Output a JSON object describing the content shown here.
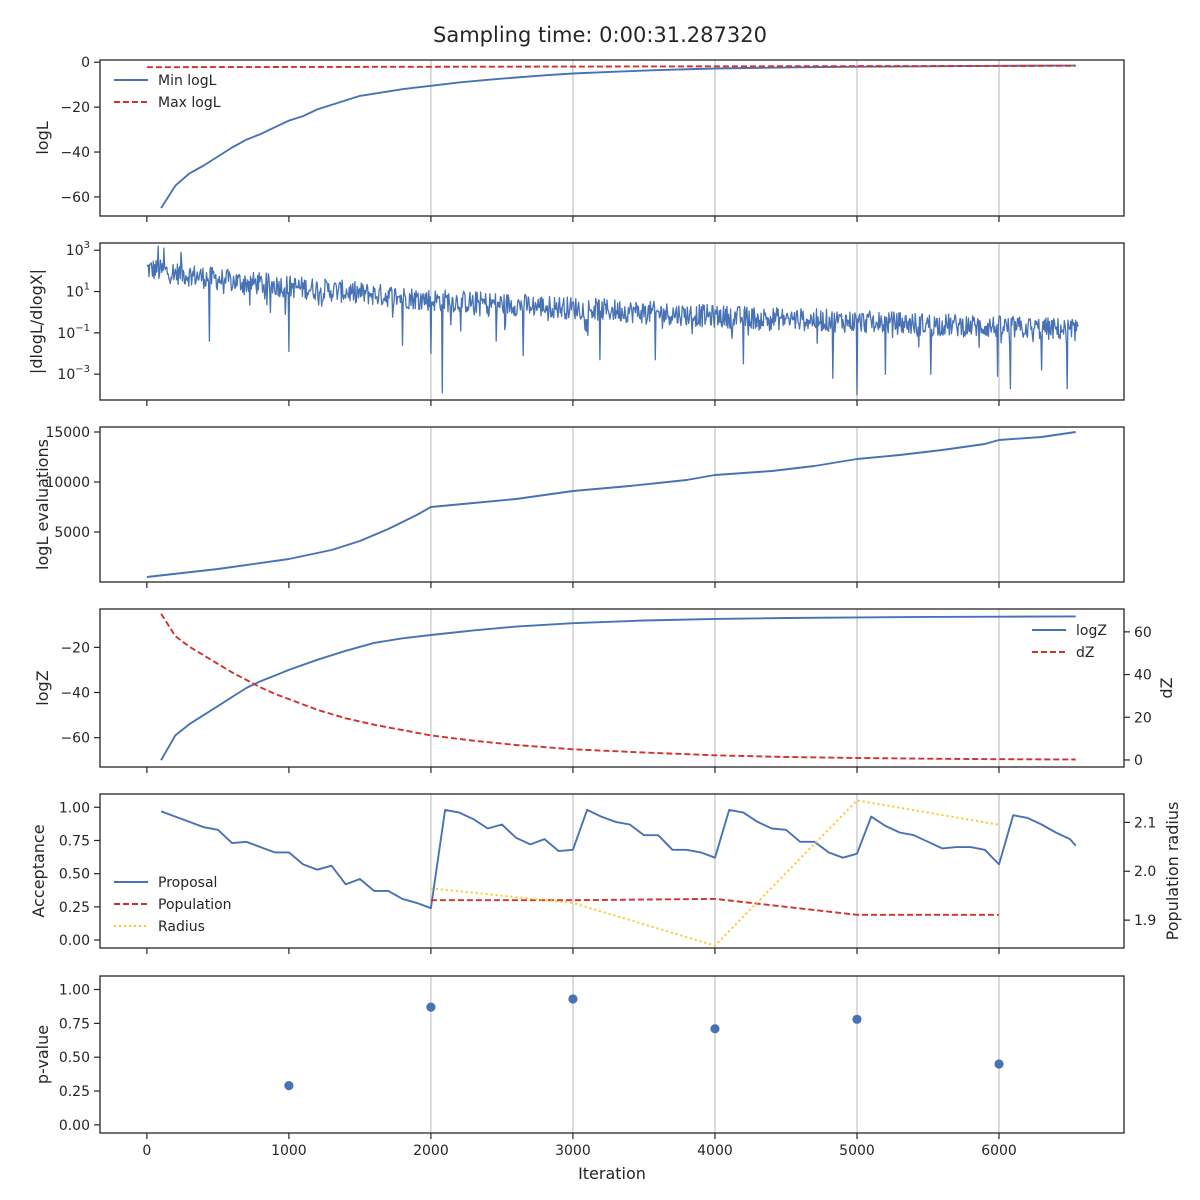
{
  "title": "Sampling time: 0:00:31.287320",
  "colors": {
    "blue": "#4872b6",
    "red": "#d0322d",
    "gold": "#ffc51c",
    "grid": "#cccccc",
    "axis": "#262626"
  },
  "shared_x": {
    "label": "Iteration",
    "ticks": [
      0,
      1000,
      2000,
      3000,
      4000,
      5000,
      6000
    ],
    "tick_labels": [
      "0",
      "1000",
      "2000",
      "3000",
      "4000",
      "5000",
      "6000"
    ],
    "xlim": [
      -330,
      6880
    ],
    "grid_x": [
      2000,
      3000,
      4000,
      5000,
      6000
    ]
  },
  "chart_data": [
    {
      "type": "line",
      "ylabel": "logL",
      "ylim": [
        -68.5,
        1
      ],
      "yticks": [
        0,
        -20,
        -40,
        -60
      ],
      "ytick_labels": [
        "0",
        "−20",
        "−40",
        "−60"
      ],
      "legend_position": "upper-left",
      "series": [
        {
          "name": "Min logL",
          "color": "blue",
          "dash": "solid",
          "x": [
            100,
            200,
            300,
            400,
            500,
            600,
            700,
            800,
            900,
            1000,
            1100,
            1200,
            1300,
            1400,
            1500,
            1600,
            1700,
            1800,
            1900,
            2000,
            2200,
            2400,
            2600,
            2800,
            3000,
            3300,
            3600,
            4000,
            4500,
            5000,
            5500,
            6000,
            6540
          ],
          "y": [
            -65,
            -55,
            -49.5,
            -46,
            -42,
            -38,
            -34.5,
            -32,
            -29,
            -26,
            -24,
            -21,
            -19,
            -17,
            -15,
            -14,
            -13,
            -12,
            -11.2,
            -10.5,
            -9,
            -7.8,
            -6.8,
            -5.8,
            -5,
            -4.2,
            -3.5,
            -2.8,
            -2.3,
            -2,
            -1.8,
            -1.6,
            -1.5
          ]
        },
        {
          "name": "Max logL",
          "color": "red",
          "dash": "dashed",
          "x": [
            0,
            6540
          ],
          "y": [
            -2.2,
            -1.6
          ]
        }
      ]
    },
    {
      "type": "line",
      "ylabel": "|dlogL/dlogX|",
      "yscale": "log",
      "ylim_log10": [
        -4.25,
        3.35
      ],
      "yticks_log10": [
        3,
        1,
        -1,
        -3
      ],
      "ytick_labels": [
        "10^3",
        "10^1",
        "10^-1",
        "10^-3"
      ],
      "series": [
        {
          "name": "",
          "color": "blue",
          "dash": "solid",
          "kind": "noisy-decay",
          "x_range": [
            0,
            6560
          ],
          "trend_log10": [
            [
              0,
              2.1
            ],
            [
              600,
              1.5
            ],
            [
              2000,
              0.6
            ],
            [
              4000,
              -0.2
            ],
            [
              6540,
              -0.85
            ]
          ],
          "noise_log10": 0.55,
          "spikes": [
            [
              80,
              3.2
            ],
            [
              120,
              3.1
            ],
            [
              240,
              2.9
            ],
            [
              440,
              -1.4
            ],
            [
              1000,
              -1.9
            ],
            [
              1800,
              -1.6
            ],
            [
              2000,
              -2.0
            ],
            [
              2080,
              -3.9
            ],
            [
              2460,
              -1.4
            ],
            [
              2650,
              -2.1
            ],
            [
              3190,
              -2.3
            ],
            [
              3580,
              -2.3
            ],
            [
              4200,
              -2.5
            ],
            [
              4720,
              -1.5
            ],
            [
              4830,
              -3.2
            ],
            [
              5000,
              -4.0
            ],
            [
              5200,
              -3.0
            ],
            [
              5520,
              -3.0
            ],
            [
              5860,
              -1.7
            ],
            [
              5990,
              -3.1
            ],
            [
              6080,
              -3.7
            ],
            [
              6300,
              -2.8
            ],
            [
              6480,
              -3.7
            ]
          ]
        }
      ]
    },
    {
      "type": "line",
      "ylabel": "logL evaluations",
      "ylim": [
        0,
        15500
      ],
      "yticks": [
        5000,
        10000,
        15000
      ],
      "ytick_labels": [
        "5000",
        "10000",
        "15000"
      ],
      "series": [
        {
          "name": "",
          "color": "blue",
          "dash": "solid",
          "x": [
            0,
            500,
            1000,
            1300,
            1500,
            1700,
            1900,
            2000,
            2300,
            2600,
            2800,
            3000,
            3400,
            3800,
            4000,
            4400,
            4700,
            5000,
            5300,
            5600,
            5900,
            6000,
            6300,
            6540
          ],
          "y": [
            500,
            1300,
            2300,
            3200,
            4100,
            5300,
            6700,
            7500,
            7900,
            8300,
            8700,
            9100,
            9600,
            10200,
            10700,
            11100,
            11600,
            12300,
            12700,
            13200,
            13800,
            14200,
            14500,
            15000
          ]
        }
      ]
    },
    {
      "type": "line",
      "ylabel": "logZ",
      "ylim": [
        -73,
        -3
      ],
      "yticks": [
        -20,
        -40,
        -60
      ],
      "ytick_labels": [
        "−20",
        "−40",
        "−60"
      ],
      "ylabel_right": "dZ",
      "ylim_right": [
        -3.3,
        70.7
      ],
      "yticks_right": [
        0,
        20,
        40,
        60
      ],
      "ytick_labels_right": [
        "0",
        "20",
        "40",
        "60"
      ],
      "legend_position": "upper-right",
      "series": [
        {
          "name": "logZ",
          "color": "blue",
          "dash": "solid",
          "axis": "left",
          "x": [
            100,
            200,
            300,
            400,
            500,
            600,
            700,
            800,
            900,
            1000,
            1200,
            1400,
            1600,
            1800,
            2000,
            2300,
            2600,
            3000,
            3500,
            4000,
            4500,
            5000,
            5500,
            6000,
            6540
          ],
          "y": [
            -70,
            -59,
            -54,
            -50,
            -46,
            -42,
            -38,
            -35,
            -32.5,
            -30,
            -25.5,
            -21.5,
            -18,
            -16,
            -14.5,
            -12.5,
            -10.8,
            -9.3,
            -8.1,
            -7.4,
            -7,
            -6.7,
            -6.5,
            -6.4,
            -6.3
          ]
        },
        {
          "name": "dZ",
          "color": "red",
          "dash": "dashed",
          "axis": "right",
          "x": [
            100,
            200,
            300,
            400,
            500,
            600,
            700,
            800,
            900,
            1000,
            1200,
            1400,
            1600,
            1800,
            2000,
            2300,
            2600,
            3000,
            3500,
            4000,
            4500,
            5000,
            5500,
            6000,
            6540
          ],
          "y": [
            68.5,
            58,
            53,
            49,
            45,
            41,
            37.5,
            34,
            31,
            28.5,
            23.5,
            19.5,
            16.5,
            14,
            11.5,
            9,
            7,
            5,
            3.5,
            2.2,
            1.4,
            0.9,
            0.6,
            0.35,
            0.2
          ]
        }
      ]
    },
    {
      "type": "line",
      "ylabel": "Acceptance",
      "ylim": [
        -0.06,
        1.1
      ],
      "yticks": [
        0,
        0.25,
        0.5,
        0.75,
        1.0
      ],
      "ytick_labels": [
        "0.00",
        "0.25",
        "0.50",
        "0.75",
        "1.00"
      ],
      "ylabel_right": "Population radius",
      "ylim_right": [
        1.843,
        2.158
      ],
      "yticks_right": [
        1.9,
        2.0,
        2.1
      ],
      "ytick_labels_right": [
        "1.9",
        "2.0",
        "2.1"
      ],
      "legend_position": "lower-left",
      "series": [
        {
          "name": "Proposal",
          "color": "blue",
          "dash": "solid",
          "axis": "left",
          "x": [
            100,
            200,
            300,
            400,
            500,
            600,
            700,
            800,
            900,
            1000,
            1100,
            1200,
            1300,
            1400,
            1500,
            1600,
            1700,
            1800,
            1900,
            2000,
            2100,
            2200,
            2300,
            2400,
            2500,
            2600,
            2700,
            2800,
            2900,
            3000,
            3100,
            3200,
            3300,
            3400,
            3500,
            3600,
            3700,
            3800,
            3900,
            4000,
            4100,
            4200,
            4300,
            4400,
            4500,
            4600,
            4700,
            4800,
            4900,
            5000,
            5100,
            5200,
            5300,
            5400,
            5500,
            5600,
            5700,
            5800,
            5900,
            6000,
            6100,
            6200,
            6300,
            6400,
            6500,
            6540
          ],
          "y": [
            0.97,
            0.93,
            0.89,
            0.85,
            0.83,
            0.73,
            0.74,
            0.7,
            0.66,
            0.66,
            0.57,
            0.53,
            0.56,
            0.42,
            0.46,
            0.37,
            0.37,
            0.31,
            0.28,
            0.24,
            0.98,
            0.96,
            0.91,
            0.84,
            0.87,
            0.77,
            0.72,
            0.76,
            0.67,
            0.68,
            0.98,
            0.93,
            0.89,
            0.87,
            0.79,
            0.79,
            0.68,
            0.68,
            0.66,
            0.62,
            0.98,
            0.96,
            0.89,
            0.84,
            0.83,
            0.74,
            0.74,
            0.66,
            0.62,
            0.65,
            0.93,
            0.86,
            0.81,
            0.79,
            0.74,
            0.69,
            0.7,
            0.7,
            0.68,
            0.57,
            0.94,
            0.92,
            0.87,
            0.81,
            0.76,
            0.71
          ]
        },
        {
          "name": "Population",
          "color": "red",
          "dash": "dashed",
          "axis": "left",
          "x": [
            2000,
            3000,
            4000,
            5000,
            6000
          ],
          "y": [
            0.3,
            0.3,
            0.31,
            0.19,
            0.19
          ]
        },
        {
          "name": "Radius",
          "color": "gold",
          "dash": "dotted",
          "axis": "right",
          "x": [
            2000,
            3000,
            4000,
            5000,
            6000
          ],
          "y": [
            1.965,
            1.935,
            1.848,
            2.145,
            2.095
          ]
        }
      ]
    },
    {
      "type": "scatter",
      "ylabel": "p-value",
      "xlabel": "Iteration",
      "ylim": [
        -0.06,
        1.1
      ],
      "yticks": [
        0,
        0.25,
        0.5,
        0.75,
        1.0
      ],
      "ytick_labels": [
        "0.00",
        "0.25",
        "0.50",
        "0.75",
        "1.00"
      ],
      "series": [
        {
          "name": "",
          "color": "blue",
          "x": [
            1000,
            2000,
            3000,
            4000,
            5000,
            6000
          ],
          "y": [
            0.29,
            0.87,
            0.93,
            0.71,
            0.78,
            0.45
          ]
        }
      ]
    }
  ]
}
